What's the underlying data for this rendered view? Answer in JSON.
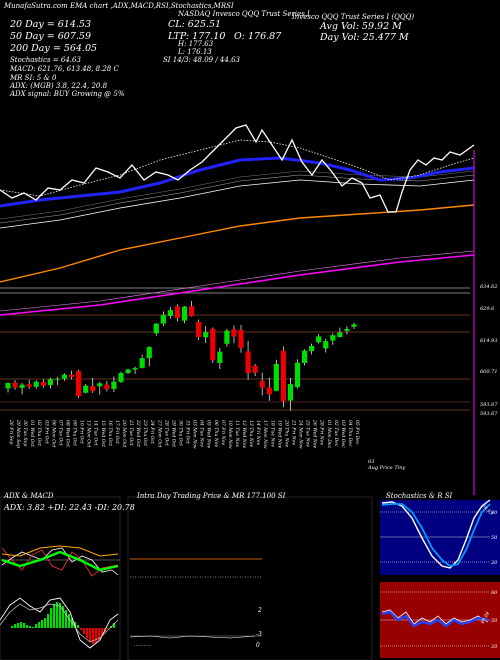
{
  "header": {
    "left": "MunafaSutra.com  EMA chart ,ADX,MACD,RSI,Stochastics,MRSI",
    "center": "NASDAQ Invesco QQQ Trust Series I",
    "right": "Invesco QQQ Trust Series I (QQQ)",
    "ema20": "20 Day = 614.53",
    "ema50": "50 Day = 607.59",
    "ema200": "200 Day = 564.05",
    "stoch": "Stochastics = 64.63",
    "macd": "MACD: 621.76, 613.48, 8.28  C",
    "mr": "MR                                SI: 5 & 0",
    "adx": "ADX:                               (MGB) 3.8, 22.4, 20.8",
    "adx_signal": "ADX  signal:                                       BUY Growing @ 5%",
    "si": "SI 14/3: 48.09 / 44.63",
    "cl": "CL: 625.51",
    "ltp": "LTP: 177.10",
    "open": "O: 176.87",
    "high": "H: 177.63",
    "low": "L: 176.13",
    "avg_vol": "Avg Vol: 59.92 M",
    "day_vol": "Day Vol: 25.477 M"
  },
  "price_labels": [
    {
      "v": "634.62",
      "y": 288
    },
    {
      "v": "629.6",
      "y": 310
    },
    {
      "v": "614.93",
      "y": 342
    },
    {
      "v": "600.71",
      "y": 373
    },
    {
      "v": "593.67",
      "y": 406
    },
    {
      "v": "593.67",
      "y": 415
    }
  ],
  "dates": [
    "26 Fri Sep",
    "29 Mon Sep",
    "30 Tue Sep",
    "01 Wed Oct",
    "02 Thu Oct",
    "03 Fri Oct",
    "06 Mon Oct",
    "07 Tue Oct",
    "08 Wed Oct",
    "09 Thu Oct",
    "10 Fri Oct",
    "13 Mon Oct",
    "14 Tue Oct",
    "15 Wed Oct",
    "16 Thu Oct",
    "17 Fri Oct",
    "20 Mon Oct",
    "21 Tue Oct",
    "22 Wed Oct",
    "23 Thu Oct",
    "24 Fri Oct",
    "27 Mon Oct",
    "28 Tue Oct",
    "29 Wed Oct",
    "30 Thu Oct",
    "31 Fri Oct",
    "03 Mon Nov",
    "04 Tue Nov",
    "05 Wed Nov",
    "06 Thu Nov",
    "07 Fri Nov",
    "10 Mon Nov",
    "11 Tue Nov",
    "12 Wed Nov",
    "13 Thu Nov",
    "14 Fri Nov",
    "17 Mon Nov",
    "18 Tue Nov",
    "19 Wed Nov",
    "20 Thu Nov",
    "21 Fri Nov",
    "24 Mon Nov",
    "25 Tue Nov",
    "26 Wed Nov",
    "28 Fri Nov",
    "01 Mon Dec",
    "02 Tue Dec",
    "03 Wed Dec",
    "04 Thu Dec",
    "05 Fri Dec"
  ],
  "footer_note": "03\nAug Price Tiny",
  "panels": {
    "adx_title": "ADX  & MACD",
    "adx_values": "ADX: 3.82  +DI: 22.43 -DI: 20.78",
    "intraday_title": "Intra Day Trading Price  & MR    177.100  SI",
    "intraday_left_marks": "...........",
    "intraday_marks": [
      "2",
      "-3",
      "0"
    ],
    "stoch_title": "Stochastics & R               SI",
    "stoch_ticks": [
      "80",
      "50",
      "20"
    ],
    "stoch_value": "64.63",
    "mrsi_ticks": [
      "80",
      "50",
      "20"
    ],
    "mrsi_value": "48.09"
  },
  "chart_data": {
    "type": "candlestick",
    "title": "Invesco QQQ Trust Series I (QQQ)",
    "categories": [
      "26 Fri Sep",
      "29 Mon Sep",
      "30 Tue Sep",
      "01 Wed Oct",
      "02 Thu Oct",
      "03 Fri Oct",
      "06 Mon Oct",
      "07 Tue Oct",
      "08 Wed Oct",
      "09 Thu Oct",
      "10 Fri Oct",
      "13 Mon Oct",
      "14 Tue Oct",
      "15 Wed Oct",
      "16 Thu Oct",
      "17 Fri Oct",
      "20 Mon Oct",
      "21 Tue Oct",
      "22 Wed Oct",
      "23 Thu Oct",
      "24 Fri Oct",
      "27 Mon Oct",
      "28 Tue Oct",
      "29 Wed Oct",
      "30 Thu Oct",
      "31 Fri Oct",
      "03 Mon Nov",
      "04 Tue Nov",
      "05 Wed Nov",
      "06 Thu Nov",
      "07 Fri Nov",
      "10 Mon Nov",
      "11 Tue Nov",
      "12 Wed Nov",
      "13 Thu Nov",
      "14 Fri Nov",
      "17 Mon Nov",
      "18 Tue Nov",
      "19 Wed Nov",
      "20 Thu Nov",
      "21 Fri Nov",
      "24 Mon Nov",
      "25 Tue Nov",
      "26 Wed Nov",
      "28 Fri Nov",
      "01 Mon Dec",
      "02 Tue Dec",
      "03 Wed Dec",
      "04 Thu Dec",
      "05 Fri Dec"
    ],
    "price_range": [
      590,
      640
    ],
    "candles": [
      {
        "o": 598.0,
        "h": 600.2,
        "l": 596.5,
        "c": 600.0
      },
      {
        "o": 600.2,
        "h": 601.0,
        "l": 597.5,
        "c": 598.3
      },
      {
        "o": 598.2,
        "h": 600.0,
        "l": 595.8,
        "c": 599.4
      },
      {
        "o": 599.5,
        "h": 601.2,
        "l": 597.8,
        "c": 598.6
      },
      {
        "o": 598.6,
        "h": 601.0,
        "l": 597.9,
        "c": 600.5
      },
      {
        "o": 600.4,
        "h": 601.4,
        "l": 598.3,
        "c": 599.0
      },
      {
        "o": 599.2,
        "h": 602.0,
        "l": 597.9,
        "c": 601.4
      },
      {
        "o": 601.3,
        "h": 602.3,
        "l": 599.2,
        "c": 601.6
      },
      {
        "o": 601.6,
        "h": 603.6,
        "l": 600.8,
        "c": 603.1
      },
      {
        "o": 603.1,
        "h": 604.6,
        "l": 601.4,
        "c": 602.2
      },
      {
        "o": 604.4,
        "h": 604.9,
        "l": 594.4,
        "c": 595.1
      },
      {
        "o": 596.4,
        "h": 599.6,
        "l": 596.1,
        "c": 599.0
      },
      {
        "o": 598.9,
        "h": 601.9,
        "l": 596.3,
        "c": 597.0
      },
      {
        "o": 598.8,
        "h": 600.4,
        "l": 595.7,
        "c": 599.9
      },
      {
        "o": 599.4,
        "h": 600.8,
        "l": 596.9,
        "c": 597.7
      },
      {
        "o": 597.8,
        "h": 602.4,
        "l": 596.6,
        "c": 600.5
      },
      {
        "o": 600.4,
        "h": 604.2,
        "l": 600.0,
        "c": 603.7
      },
      {
        "o": 603.7,
        "h": 605.3,
        "l": 603.3,
        "c": 605.0
      },
      {
        "o": 605.0,
        "h": 606.0,
        "l": 603.4,
        "c": 605.6
      },
      {
        "o": 605.6,
        "h": 610.5,
        "l": 605.4,
        "c": 609.2
      },
      {
        "o": 609.2,
        "h": 613.6,
        "l": 606.2,
        "c": 613.3
      },
      {
        "o": 618.4,
        "h": 622.1,
        "l": 617.5,
        "c": 622.0
      },
      {
        "o": 622.0,
        "h": 626.5,
        "l": 621.1,
        "c": 625.2
      },
      {
        "o": 624.8,
        "h": 628.2,
        "l": 623.8,
        "c": 627.0
      },
      {
        "o": 628.4,
        "h": 629.1,
        "l": 622.8,
        "c": 624.1
      },
      {
        "o": 623.1,
        "h": 628.5,
        "l": 622.1,
        "c": 628.3
      },
      {
        "o": 628.4,
        "h": 630.4,
        "l": 624.6,
        "c": 624.8
      },
      {
        "o": 622.6,
        "h": 623.5,
        "l": 615.9,
        "c": 617.0
      },
      {
        "o": 616.9,
        "h": 621.1,
        "l": 614.8,
        "c": 618.8
      },
      {
        "o": 620.1,
        "h": 620.6,
        "l": 607.4,
        "c": 608.4
      },
      {
        "o": 607.4,
        "h": 613.0,
        "l": 605.2,
        "c": 611.6
      },
      {
        "o": 614.5,
        "h": 620.1,
        "l": 613.5,
        "c": 619.4
      },
      {
        "o": 619.9,
        "h": 621.3,
        "l": 614.7,
        "c": 617.2
      },
      {
        "o": 619.7,
        "h": 621.5,
        "l": 611.2,
        "c": 612.9
      },
      {
        "o": 611.7,
        "h": 615.6,
        "l": 601.2,
        "c": 603.7
      },
      {
        "o": 606.4,
        "h": 607.1,
        "l": 602.6,
        "c": 603.8
      },
      {
        "o": 600.8,
        "h": 603.8,
        "l": 595.4,
        "c": 598.3
      },
      {
        "o": 598.3,
        "h": 602.0,
        "l": 593.4,
        "c": 595.8
      },
      {
        "o": 597.1,
        "h": 608.6,
        "l": 597.0,
        "c": 607.1
      },
      {
        "o": 611.9,
        "h": 613.6,
        "l": 591.0,
        "c": 593.3
      },
      {
        "o": 593.5,
        "h": 601.9,
        "l": 589.7,
        "c": 599.6
      },
      {
        "o": 598.5,
        "h": 608.8,
        "l": 597.9,
        "c": 607.5
      },
      {
        "o": 607.4,
        "h": 612.5,
        "l": 606.5,
        "c": 612.0
      },
      {
        "o": 611.8,
        "h": 614.6,
        "l": 610.6,
        "c": 613.7
      },
      {
        "o": 615.1,
        "h": 618.2,
        "l": 614.6,
        "c": 617.3
      },
      {
        "o": 612.8,
        "h": 616.4,
        "l": 611.3,
        "c": 615.5
      },
      {
        "o": 615.7,
        "h": 618.4,
        "l": 614.1,
        "c": 617.7
      },
      {
        "o": 617.0,
        "h": 620.5,
        "l": 616.9,
        "c": 618.7
      },
      {
        "o": 619.3,
        "h": 621.0,
        "l": 618.0,
        "c": 620.0
      },
      {
        "o": 620.8,
        "h": 622.3,
        "l": 620.0,
        "c": 621.7
      }
    ],
    "ema": [
      {
        "name": "20 Day",
        "color": "#2222ff",
        "value": 614.53
      },
      {
        "name": "50 Day",
        "color": "#ffffff",
        "value": 607.59
      },
      {
        "name": "200 Day",
        "color": "#ff00ff",
        "value": 564.05
      }
    ],
    "horizontal_levels": [
      634.62,
      629.6,
      614.93,
      600.71,
      593.67
    ]
  },
  "colors": {
    "bull": "#00dd00",
    "bear": "#ee0000",
    "ema20": "#2222ff",
    "ema_orange": "#ff8800",
    "ema_magenta": "#ff00ff",
    "level": "#cc6644",
    "stoch_bg": "#000080",
    "mrsi_bg": "#990000"
  }
}
